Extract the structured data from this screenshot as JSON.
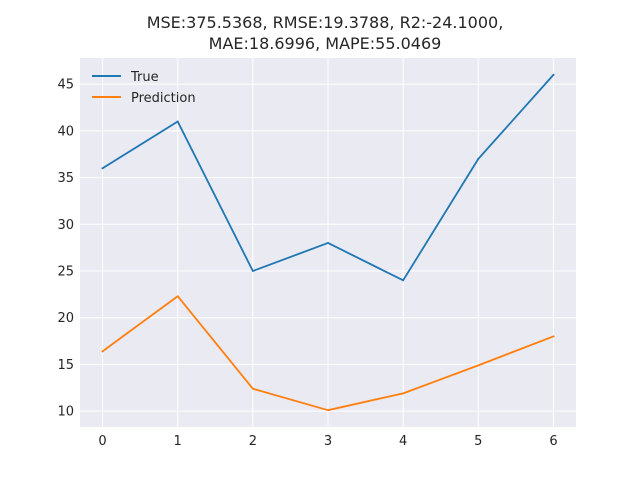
{
  "chart_data": {
    "type": "line",
    "title_lines": [
      "MSE:375.5368, RMSE:19.3788, R2:-24.1000,",
      "MAE:18.6996, MAPE:55.0469"
    ],
    "xlabel": "",
    "ylabel": "",
    "x": [
      0,
      1,
      2,
      3,
      4,
      5,
      6
    ],
    "xticks": [
      "0",
      "1",
      "2",
      "3",
      "4",
      "5",
      "6"
    ],
    "yticks": [
      "10",
      "15",
      "20",
      "25",
      "30",
      "35",
      "40",
      "45"
    ],
    "xlim": [
      -0.3,
      6.3
    ],
    "ylim": [
      8.3,
      47.8
    ],
    "grid": true,
    "legend_position": "top-left",
    "series": [
      {
        "name": "True",
        "color": "#1f77b4",
        "values": [
          36,
          41,
          25,
          28,
          24,
          37,
          46
        ]
      },
      {
        "name": "Prediction",
        "color": "#ff7f0e",
        "values": [
          16.4,
          22.3,
          12.4,
          10.1,
          11.9,
          14.9,
          18.0
        ]
      }
    ],
    "background": "#eaeaf2"
  }
}
